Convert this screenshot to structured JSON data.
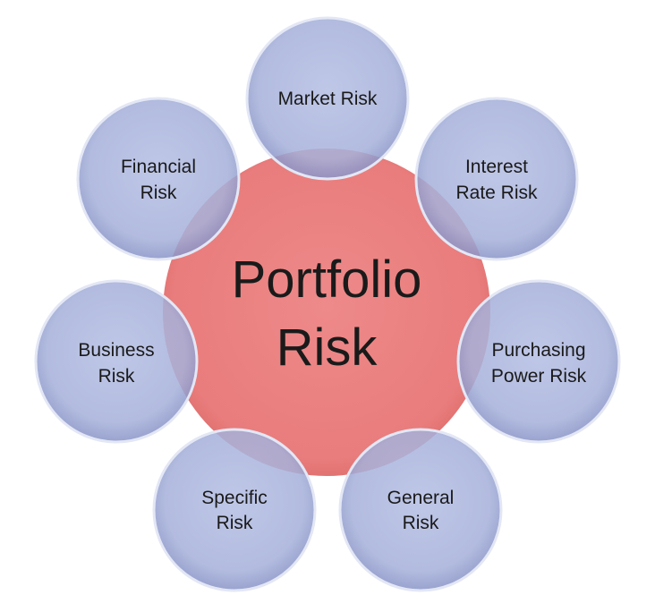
{
  "diagram": {
    "center": {
      "lines": [
        "Portfolio",
        "Risk"
      ],
      "color": "#ea7f7f"
    },
    "nodes": [
      {
        "id": "market",
        "lines": [
          "Market Risk"
        ]
      },
      {
        "id": "interest",
        "lines": [
          "Interest",
          "Rate Risk"
        ]
      },
      {
        "id": "purchasing",
        "lines": [
          "Purchasing",
          "Power Risk"
        ]
      },
      {
        "id": "general",
        "lines": [
          "General",
          "Risk"
        ]
      },
      {
        "id": "specific",
        "lines": [
          "Specific",
          "Risk"
        ]
      },
      {
        "id": "business",
        "lines": [
          "Business",
          "Risk"
        ]
      },
      {
        "id": "financial",
        "lines": [
          "Financial",
          "Risk"
        ]
      }
    ],
    "colors": {
      "node_fill": "#a7b2d9",
      "node_stroke": "#dfe4f4",
      "edge_fill": "#8a96c8"
    }
  }
}
